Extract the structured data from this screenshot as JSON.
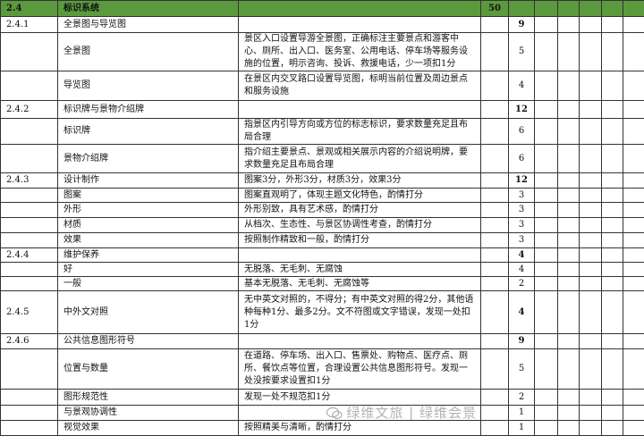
{
  "header": {
    "code": "2.4",
    "title": "标识系统",
    "total": "50"
  },
  "rows": [
    {
      "code": "2.4.1",
      "item": "全景图与导览图",
      "desc": "",
      "score": "9",
      "bold": true
    },
    {
      "code": "",
      "item": "全景图",
      "desc": "景区入口设置导游全景图，正确标注主要景点和游客中心、厕所、出入口、医务室、公用电话、停车场等服务设施的位置，明示咨询、投诉、救援电话，少一项扣1分",
      "score": "5"
    },
    {
      "code": "",
      "item": "导览图",
      "desc": "在景区内交叉路口设置导览图，标明当前位置及周边景点和服务设施",
      "score": "4"
    },
    {
      "code": "2.4.2",
      "item": "标识牌与景物介绍牌",
      "desc": "",
      "score": "12",
      "bold": true
    },
    {
      "code": "",
      "item": "标识牌",
      "desc": "指景区内引导方向或方位的标志标识，要求数量充足且布局合理",
      "score": "6"
    },
    {
      "code": "",
      "item": "景物介绍牌",
      "desc": "指介绍主要景点、景观或相关展示内容的介绍说明牌，要求数量充足且布局合理",
      "score": "6"
    },
    {
      "code": "2.4.3",
      "item": "设计制作",
      "desc": "图案3分，外形3分，材质3分，效果3分",
      "score": "12",
      "bold": true
    },
    {
      "code": "",
      "item": "图案",
      "desc": "图案直观明了，体现主题文化特色，酌情打分",
      "score": "3"
    },
    {
      "code": "",
      "item": "外形",
      "desc": "外形别致，具有艺术感，酌情打分",
      "score": "3"
    },
    {
      "code": "",
      "item": "材质",
      "desc": "从档次、生态性、与景区协调性考查，酌情打分",
      "score": "3"
    },
    {
      "code": "",
      "item": "效果",
      "desc": "按照制作精致和一般，酌情打分",
      "score": "3"
    },
    {
      "code": "2.4.4",
      "item": "维护保养",
      "desc": "",
      "score": "4",
      "bold": true
    },
    {
      "code": "",
      "item": "好",
      "desc": "无脱落、无毛刺、无腐蚀",
      "score": "4"
    },
    {
      "code": "",
      "item": "一般",
      "desc": "基本无脱落、无毛刺、无腐蚀等",
      "score": "2"
    },
    {
      "code": "2.4.5",
      "item": "中外文对照",
      "desc": "无中英文对照的，不得分；有中英文对照的得2分，其他语种每种1分、最多2分。文不符图或文字错误，发现一处扣1分",
      "score": "4",
      "bold": true
    },
    {
      "code": "2.4.6",
      "item": "公共信息图形符号",
      "desc": "",
      "score": "9",
      "bold": true
    },
    {
      "code": "",
      "item": "位置与数量",
      "desc": "在道路、停车场、出入口、售票处、购物点、医疗点、厕所、餐饮点等位置，合理设置公共信息图形符号。发现一处没按要求设置扣1分",
      "score": "5"
    },
    {
      "code": "",
      "item": "图形规范性",
      "desc": "发现一处不规范扣1分",
      "score": "2"
    },
    {
      "code": "",
      "item": "与景观协调性",
      "desc": "",
      "score": "1"
    },
    {
      "code": "",
      "item": "视觉效果",
      "desc": "按照精美与清晰，酌情打分",
      "score": "1"
    }
  ],
  "watermark": "绿维文旅 | 绿维会景",
  "colors": {
    "header_bg": "#5a9a3c"
  }
}
